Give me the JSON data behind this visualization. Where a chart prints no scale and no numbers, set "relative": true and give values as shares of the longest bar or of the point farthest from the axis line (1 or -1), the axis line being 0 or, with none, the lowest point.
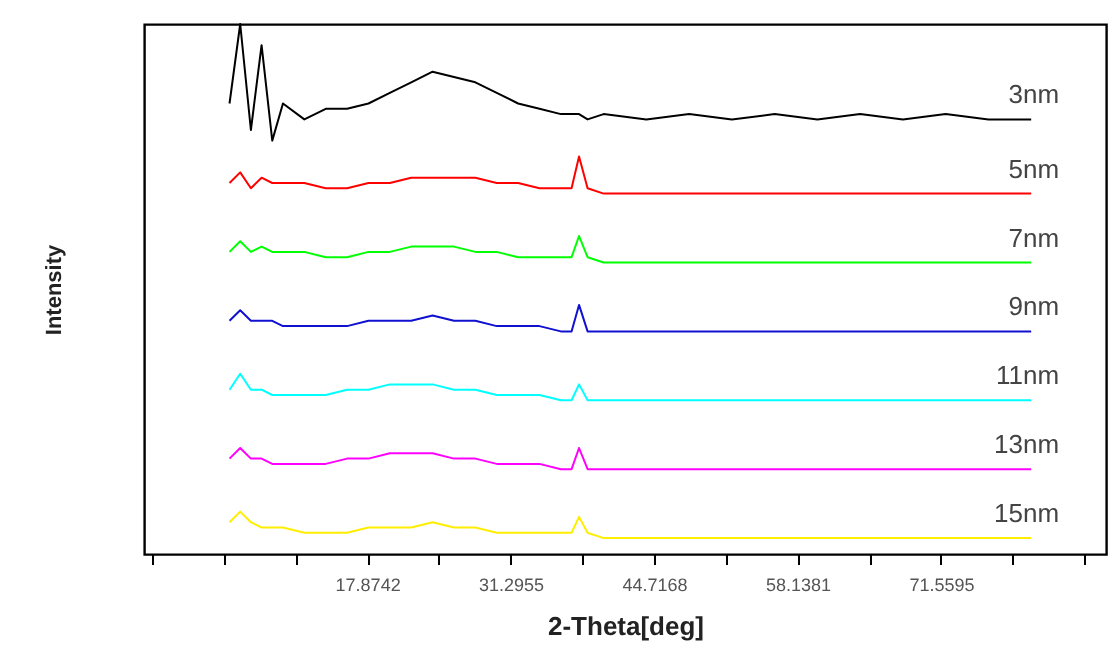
{
  "chart_data": {
    "type": "line",
    "xlabel": "2-Theta[deg]",
    "ylabel": "Intensity",
    "relative": true,
    "xlim": [
      -3,
      87
    ],
    "xticks": [
      {
        "value": -2.2578,
        "label": null
      },
      {
        "value": 4.4529,
        "label": null
      },
      {
        "value": 11.1636,
        "label": null
      },
      17.8742,
      {
        "value": 24.5849,
        "label": null
      },
      31.2955,
      {
        "value": 38.0062,
        "label": null
      },
      44.7168,
      {
        "value": 51.4275,
        "label": null
      },
      58.1381,
      {
        "value": 64.8488,
        "label": null
      },
      71.5595,
      {
        "value": 78.2702,
        "label": null
      },
      {
        "value": 84.9808,
        "label": null
      }
    ],
    "x": [
      5,
      6,
      7,
      8,
      9,
      10,
      12,
      14,
      16,
      18,
      20,
      22,
      24,
      26,
      28,
      30,
      32,
      34,
      36,
      37,
      37.7,
      38.5,
      40,
      44,
      48,
      52,
      56,
      60,
      64,
      68,
      72,
      76,
      80
    ],
    "series": [
      {
        "name": "3nm",
        "color": "#000000",
        "values": [
          0.85,
          1.0,
          0.8,
          0.96,
          0.78,
          0.85,
          0.82,
          0.84,
          0.84,
          0.85,
          0.87,
          0.89,
          0.91,
          0.9,
          0.89,
          0.87,
          0.85,
          0.84,
          0.83,
          0.83,
          0.83,
          0.82,
          0.83,
          0.82,
          0.83,
          0.82,
          0.83,
          0.82,
          0.83,
          0.82,
          0.83,
          0.82,
          0.82
        ]
      },
      {
        "name": "5nm",
        "color": "#ff0000",
        "values": [
          0.7,
          0.72,
          0.69,
          0.71,
          0.7,
          0.7,
          0.7,
          0.69,
          0.69,
          0.7,
          0.7,
          0.71,
          0.71,
          0.71,
          0.71,
          0.7,
          0.7,
          0.69,
          0.69,
          0.69,
          0.75,
          0.69,
          0.68,
          0.68,
          0.68,
          0.68,
          0.68,
          0.68,
          0.68,
          0.68,
          0.68,
          0.68,
          0.68
        ]
      },
      {
        "name": "7nm",
        "color": "#00ff00",
        "values": [
          0.57,
          0.59,
          0.57,
          0.58,
          0.57,
          0.57,
          0.57,
          0.56,
          0.56,
          0.57,
          0.57,
          0.58,
          0.58,
          0.58,
          0.57,
          0.57,
          0.56,
          0.56,
          0.56,
          0.56,
          0.6,
          0.56,
          0.55,
          0.55,
          0.55,
          0.55,
          0.55,
          0.55,
          0.55,
          0.55,
          0.55,
          0.55,
          0.55
        ]
      },
      {
        "name": "9nm",
        "color": "#1010d0",
        "values": [
          0.44,
          0.46,
          0.44,
          0.44,
          0.44,
          0.43,
          0.43,
          0.43,
          0.43,
          0.44,
          0.44,
          0.44,
          0.45,
          0.44,
          0.44,
          0.43,
          0.43,
          0.43,
          0.42,
          0.42,
          0.47,
          0.42,
          0.42,
          0.42,
          0.42,
          0.42,
          0.42,
          0.42,
          0.42,
          0.42,
          0.42,
          0.42,
          0.42
        ]
      },
      {
        "name": "11nm",
        "color": "#00ffff",
        "values": [
          0.31,
          0.34,
          0.31,
          0.31,
          0.3,
          0.3,
          0.3,
          0.3,
          0.31,
          0.31,
          0.32,
          0.32,
          0.32,
          0.31,
          0.31,
          0.3,
          0.3,
          0.3,
          0.29,
          0.29,
          0.32,
          0.29,
          0.29,
          0.29,
          0.29,
          0.29,
          0.29,
          0.29,
          0.29,
          0.29,
          0.29,
          0.29,
          0.29
        ]
      },
      {
        "name": "13nm",
        "color": "#ff00ff",
        "values": [
          0.18,
          0.2,
          0.18,
          0.18,
          0.17,
          0.17,
          0.17,
          0.17,
          0.18,
          0.18,
          0.19,
          0.19,
          0.19,
          0.18,
          0.18,
          0.17,
          0.17,
          0.17,
          0.16,
          0.16,
          0.2,
          0.16,
          0.16,
          0.16,
          0.16,
          0.16,
          0.16,
          0.16,
          0.16,
          0.16,
          0.16,
          0.16,
          0.16
        ]
      },
      {
        "name": "15nm",
        "color": "#ffee00",
        "values": [
          0.06,
          0.08,
          0.06,
          0.05,
          0.05,
          0.05,
          0.04,
          0.04,
          0.04,
          0.05,
          0.05,
          0.05,
          0.06,
          0.05,
          0.05,
          0.04,
          0.04,
          0.04,
          0.04,
          0.04,
          0.07,
          0.04,
          0.03,
          0.03,
          0.03,
          0.03,
          0.03,
          0.03,
          0.03,
          0.03,
          0.03,
          0.03,
          0.03
        ]
      }
    ]
  }
}
